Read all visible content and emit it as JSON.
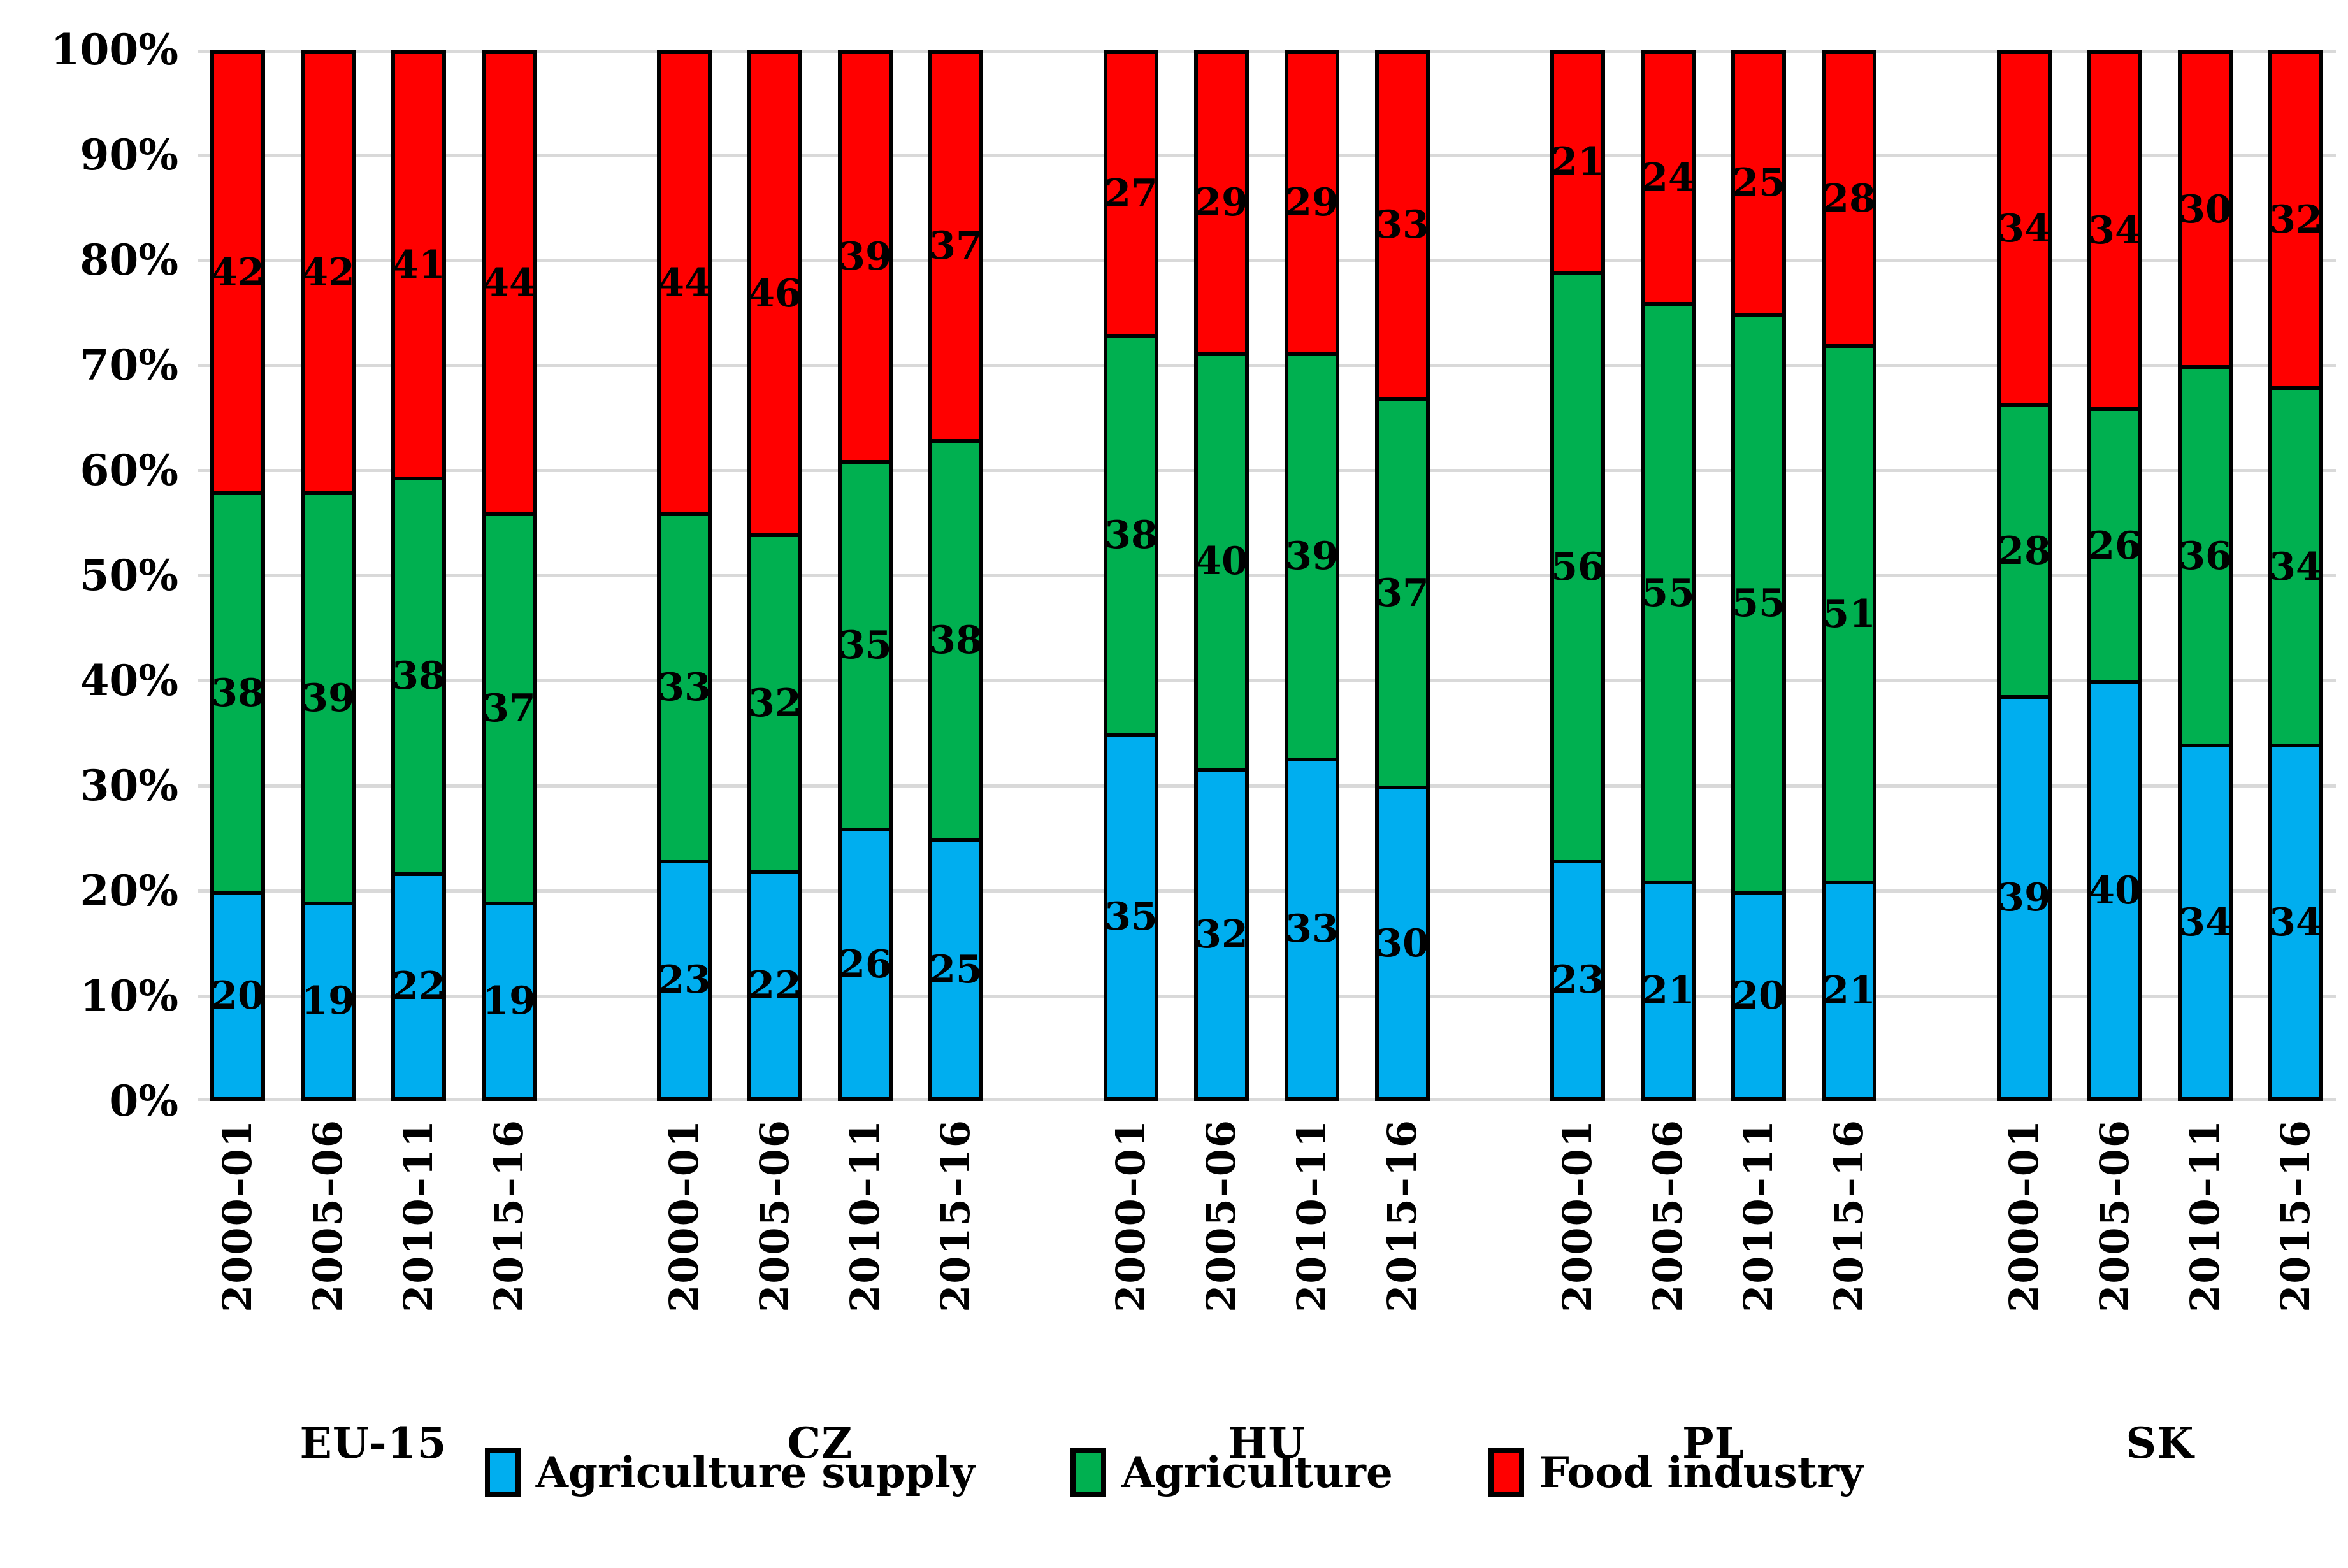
{
  "chart_data": {
    "type": "bar",
    "variant": "100-percent-stacked-column",
    "title": "",
    "xlabel": "",
    "ylabel": "",
    "ylim": [
      0,
      100
    ],
    "grid": true,
    "gridline_color": "#d9d9d9",
    "legend_position": "bottom",
    "y_ticks": [
      "0%",
      "10%",
      "20%",
      "30%",
      "40%",
      "50%",
      "60%",
      "70%",
      "80%",
      "90%",
      "100%"
    ],
    "groups": [
      "EU-15",
      "CZ",
      "HU",
      "PL",
      "SK"
    ],
    "categories": [
      "2000–01",
      "2005–06",
      "2010–11",
      "2015–16"
    ],
    "series": [
      {
        "name": "Agriculture supply",
        "color": "#00AEEF",
        "values": [
          [
            20,
            19,
            22,
            19
          ],
          [
            23,
            22,
            26,
            25
          ],
          [
            35,
            32,
            33,
            30
          ],
          [
            23,
            21,
            20,
            21
          ],
          [
            39,
            40,
            34,
            34
          ]
        ]
      },
      {
        "name": "Agriculture",
        "color": "#00B050",
        "values": [
          [
            38,
            39,
            38,
            37
          ],
          [
            33,
            32,
            35,
            38
          ],
          [
            38,
            40,
            39,
            37
          ],
          [
            56,
            55,
            55,
            51
          ],
          [
            28,
            26,
            36,
            34
          ]
        ]
      },
      {
        "name": "Food industry",
        "color": "#FF0000",
        "values": [
          [
            42,
            42,
            41,
            44
          ],
          [
            44,
            46,
            39,
            37
          ],
          [
            27,
            29,
            29,
            33
          ],
          [
            21,
            24,
            25,
            28
          ],
          [
            34,
            34,
            30,
            32
          ]
        ]
      }
    ]
  }
}
